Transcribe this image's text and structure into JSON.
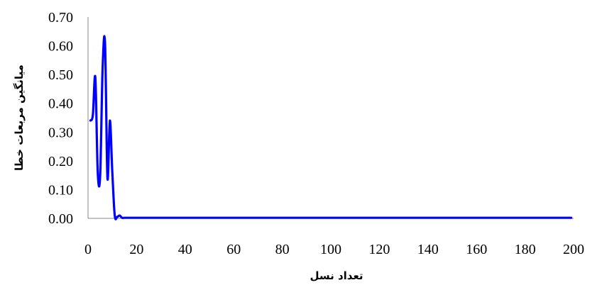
{
  "chart_data": {
    "type": "line",
    "title": "",
    "xlabel": "تعداد نسل",
    "ylabel": "میانگین مربعات خطا",
    "xlim": [
      0,
      200
    ],
    "ylim": [
      0,
      0.7
    ],
    "x_ticks": [
      "0",
      "20",
      "40",
      "60",
      "80",
      "100",
      "120",
      "140",
      "160",
      "180",
      "200"
    ],
    "y_ticks": [
      "0.00",
      "0.10",
      "0.20",
      "0.30",
      "0.40",
      "0.50",
      "0.60",
      "0.70"
    ],
    "grid": false,
    "legend": "none",
    "line_color": "#0000ff",
    "axis_color": "#888888",
    "series": [
      {
        "x": [
          1,
          2,
          3,
          4,
          5,
          6,
          7,
          8,
          9,
          10,
          11,
          12,
          13,
          14,
          15,
          20,
          40,
          60,
          80,
          100,
          120,
          140,
          160,
          180,
          199
        ],
        "values": [
          0.34,
          0.36,
          0.49,
          0.16,
          0.15,
          0.52,
          0.61,
          0.14,
          0.34,
          0.16,
          0.01,
          0.005,
          0.01,
          0.002,
          0.002,
          0.002,
          0.002,
          0.002,
          0.002,
          0.002,
          0.002,
          0.002,
          0.002,
          0.002,
          0.002
        ]
      }
    ]
  }
}
